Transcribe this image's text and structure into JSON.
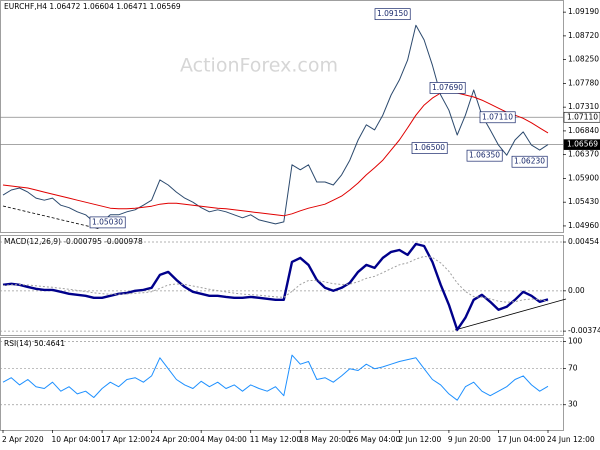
{
  "chart_data": [
    {
      "type": "line",
      "title": "EURCHF,H4  1.06472 1.06604 1.06471 1.06569",
      "watermark": "ActionForex.com",
      "series": [
        {
          "name": "EURCHF",
          "color": "#2c4a6e",
          "style": "solid",
          "values": [
            1.0557,
            1.0567,
            1.0571,
            1.0563,
            1.0551,
            1.0547,
            1.0551,
            1.0537,
            1.0532,
            1.0524,
            1.0518,
            1.0504,
            1.0504,
            1.0518,
            1.0518,
            1.0524,
            1.0528,
            1.0537,
            1.0547,
            1.0587,
            1.0577,
            1.0563,
            1.0551,
            1.0543,
            1.0532,
            1.0524,
            1.0528,
            1.0524,
            1.0518,
            1.0512,
            1.0518,
            1.0508,
            1.0504,
            1.05,
            1.0504,
            1.0617,
            1.0607,
            1.0617,
            1.0583,
            1.0583,
            1.0577,
            1.0597,
            1.0626,
            1.0666,
            1.0696,
            1.0686,
            1.0715,
            1.0755,
            1.0785,
            1.0824,
            1.0893,
            1.0864,
            1.0814,
            1.0755,
            1.0725,
            1.0676,
            1.0715,
            1.0765,
            1.0715,
            1.0686,
            1.0656,
            1.0636,
            1.0666,
            1.0682,
            1.0656,
            1.0646,
            1.0657
          ]
        },
        {
          "name": "MA",
          "color": "#e00000",
          "style": "solid",
          "values": [
            1.0577,
            1.0575,
            1.0573,
            1.0571,
            1.0567,
            1.0563,
            1.0559,
            1.0555,
            1.0551,
            1.0547,
            1.0543,
            1.0539,
            1.0535,
            1.0531,
            1.053,
            1.053,
            1.0531,
            1.0533,
            1.0535,
            1.0539,
            1.0541,
            1.0541,
            1.0539,
            1.0537,
            1.0535,
            1.0533,
            1.0531,
            1.053,
            1.0528,
            1.0526,
            1.0524,
            1.0522,
            1.052,
            1.0518,
            1.0516,
            1.052,
            1.0526,
            1.0531,
            1.0535,
            1.0539,
            1.0547,
            1.0555,
            1.0567,
            1.0581,
            1.0597,
            1.0611,
            1.0626,
            1.0646,
            1.0666,
            1.069,
            1.0715,
            1.0735,
            1.0749,
            1.0759,
            1.0761,
            1.0759,
            1.0755,
            1.0751,
            1.0745,
            1.0737,
            1.0729,
            1.0721,
            1.0715,
            1.0709,
            1.07,
            1.069,
            1.068
          ]
        }
      ],
      "ylim": [
        1.0484,
        1.0943
      ],
      "yticks": [
        {
          "value": 1.0919,
          "label": "1.09190"
        },
        {
          "value": 1.0872,
          "label": "1.08720"
        },
        {
          "value": 1.0825,
          "label": "1.08250"
        },
        {
          "value": 1.0778,
          "label": "1.07780"
        },
        {
          "value": 1.0731,
          "label": "1.07310"
        },
        {
          "value": 1.0684,
          "label": "1.06840"
        },
        {
          "value": 1.0637,
          "label": "1.06370"
        },
        {
          "value": 1.059,
          "label": "1.05900"
        },
        {
          "value": 1.0543,
          "label": "1.05430"
        },
        {
          "value": 1.0496,
          "label": "1.04960"
        }
      ],
      "grid": false,
      "hlines": [
        {
          "value": 1.0711,
          "label": "1.07110"
        },
        {
          "value": 1.06569,
          "label": "1.06569"
        }
      ],
      "annotations": [
        {
          "value": 1.0915,
          "label": "1.09150"
        },
        {
          "value": 1.0769,
          "label": "1.07690"
        },
        {
          "value": 1.0711,
          "label": "1.07110"
        },
        {
          "value": 1.065,
          "label": "1.06500"
        },
        {
          "value": 1.0635,
          "label": "1.06350"
        },
        {
          "value": 1.0623,
          "label": "1.06230"
        },
        {
          "value": 1.0503,
          "label": "1.05030"
        }
      ]
    },
    {
      "type": "line",
      "title": "MACD(12,26,9) -0.000795 -0.000978",
      "series": [
        {
          "name": "MACD",
          "color": "#00008b",
          "style": "bold",
          "values": [
            0.00056,
            0.00065,
            0.00056,
            0.00037,
            0.00019,
            9e-05,
            9e-05,
            -9e-05,
            -0.00028,
            -0.00037,
            -0.00046,
            -0.00065,
            -0.00065,
            -0.00046,
            -0.00028,
            -0.00019,
            0,
            9e-05,
            0.00028,
            0.00148,
            0.00176,
            0.00102,
            0.00037,
            -9e-05,
            -0.00028,
            -0.00046,
            -0.00046,
            -0.00056,
            -0.00065,
            -0.00065,
            -0.00056,
            -0.00065,
            -0.00074,
            -0.00083,
            -0.00083,
            0.00269,
            0.00306,
            0.00241,
            0.00102,
            0.00028,
            0,
            0.00028,
            0.00074,
            0.00176,
            0.00241,
            0.00213,
            0.00306,
            0.00362,
            0.0038,
            0.00334,
            0.00436,
            0.00417,
            0.00269,
            0.00056,
            -0.0013,
            -0.00362,
            -0.0025,
            -0.00083,
            -0.00037,
            -0.00102,
            -0.00176,
            -0.00148,
            -0.00083,
            -9e-05,
            -0.00046,
            -0.00102,
            -0.0008
          ]
        },
        {
          "name": "Signal",
          "color": "#a0a0a0",
          "style": "dotted",
          "values": [
            0.0005,
            0.00055,
            0.00058,
            0.00054,
            0.00047,
            0.00039,
            0.00033,
            0.00024,
            0.00014,
            4e-05,
            -6e-05,
            -0.00018,
            -0.00027,
            -0.00031,
            -0.00031,
            -0.00029,
            -0.00023,
            -0.00017,
            -8e-05,
            0.00023,
            0.00054,
            0.00064,
            0.00059,
            0.00045,
            0.0003,
            0.00014,
            2e-05,
            -0.0001,
            -0.00021,
            -0.0003,
            -0.00035,
            -0.00041,
            -0.00048,
            -0.00055,
            -0.00061,
            -5e-05,
            0.0006,
            0.00096,
            0.00097,
            0.00083,
            0.00066,
            0.00059,
            0.00062,
            0.00085,
            0.00116,
            0.00135,
            0.00169,
            0.00207,
            0.00242,
            0.0026,
            0.00295,
            0.0032,
            0.0031,
            0.0026,
            0.00182,
            0.00073,
            -6e-05,
            -0.00054,
            -0.00059,
            -0.00075,
            -0.00096,
            -0.00106,
            -0.00101,
            -0.00083,
            -0.00076,
            -0.00081,
            -0.00098
          ]
        }
      ],
      "ylim": [
        -0.0042,
        0.0051
      ],
      "yticks": [
        0.00454,
        {
          "value": 0,
          "label": "0.00"
        },
        -0.003745
      ],
      "grid": true
    },
    {
      "type": "line",
      "title": "RSI(14) 50.4641",
      "series": [
        {
          "name": "RSI",
          "color": "#1e90ff",
          "style": "solid",
          "values": [
            55,
            60,
            52,
            58,
            50,
            48,
            55,
            45,
            50,
            42,
            45,
            38,
            48,
            55,
            50,
            58,
            60,
            55,
            62,
            82,
            70,
            58,
            52,
            48,
            56,
            50,
            55,
            48,
            52,
            45,
            52,
            48,
            45,
            50,
            40,
            85,
            75,
            78,
            58,
            60,
            55,
            62,
            70,
            68,
            75,
            70,
            72,
            75,
            78,
            80,
            82,
            70,
            58,
            52,
            42,
            35,
            50,
            55,
            45,
            40,
            45,
            50,
            58,
            62,
            52,
            45,
            50.4641
          ]
        }
      ],
      "ylim": [
        2,
        104
      ],
      "yticks": [
        100,
        70,
        30
      ],
      "grid": true,
      "categories": [
        "2 Apr 2020",
        null,
        null,
        null,
        null,
        null,
        "10 Apr 04:00",
        null,
        null,
        null,
        null,
        null,
        "17 Apr 12:00",
        null,
        null,
        null,
        null,
        null,
        "24 Apr 20:00",
        null,
        null,
        null,
        null,
        null,
        "4 May 04:00",
        null,
        null,
        null,
        null,
        null,
        "11 May 12:00",
        null,
        null,
        null,
        null,
        null,
        "18 May 20:00",
        null,
        null,
        null,
        null,
        null,
        "26 May 04:00",
        null,
        null,
        null,
        null,
        null,
        "2 Jun 12:00",
        null,
        null,
        null,
        null,
        null,
        "9 Jun 20:00",
        null,
        null,
        null,
        null,
        null,
        "17 Jun 04:00",
        null,
        null,
        null,
        null,
        null,
        "24 Jun 12:00"
      ]
    }
  ]
}
